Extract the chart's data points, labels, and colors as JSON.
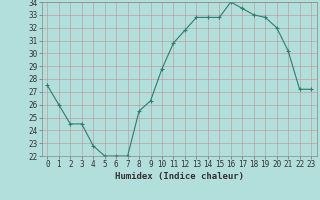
{
  "x": [
    0,
    1,
    2,
    3,
    4,
    5,
    6,
    7,
    8,
    9,
    10,
    11,
    12,
    13,
    14,
    15,
    16,
    17,
    18,
    19,
    20,
    21,
    22,
    23
  ],
  "y": [
    27.5,
    26.0,
    24.5,
    24.5,
    22.8,
    22.0,
    22.0,
    22.0,
    25.5,
    26.3,
    28.8,
    30.8,
    31.8,
    32.8,
    32.8,
    32.8,
    34.0,
    33.5,
    33.0,
    32.8,
    32.0,
    30.2,
    27.2,
    27.2
  ],
  "xlabel": "Humidex (Indice chaleur)",
  "xlim": [
    -0.5,
    23.5
  ],
  "ylim": [
    22,
    34
  ],
  "yticks": [
    22,
    23,
    24,
    25,
    26,
    27,
    28,
    29,
    30,
    31,
    32,
    33,
    34
  ],
  "xticks": [
    0,
    1,
    2,
    3,
    4,
    5,
    6,
    7,
    8,
    9,
    10,
    11,
    12,
    13,
    14,
    15,
    16,
    17,
    18,
    19,
    20,
    21,
    22,
    23
  ],
  "line_color": "#2e7d6e",
  "marker_color": "#2e7d6e",
  "bg_color": "#b2dfdb",
  "grid_color": "#a0c8c4",
  "tick_label_fontsize": 5.5,
  "xlabel_fontsize": 6.5
}
